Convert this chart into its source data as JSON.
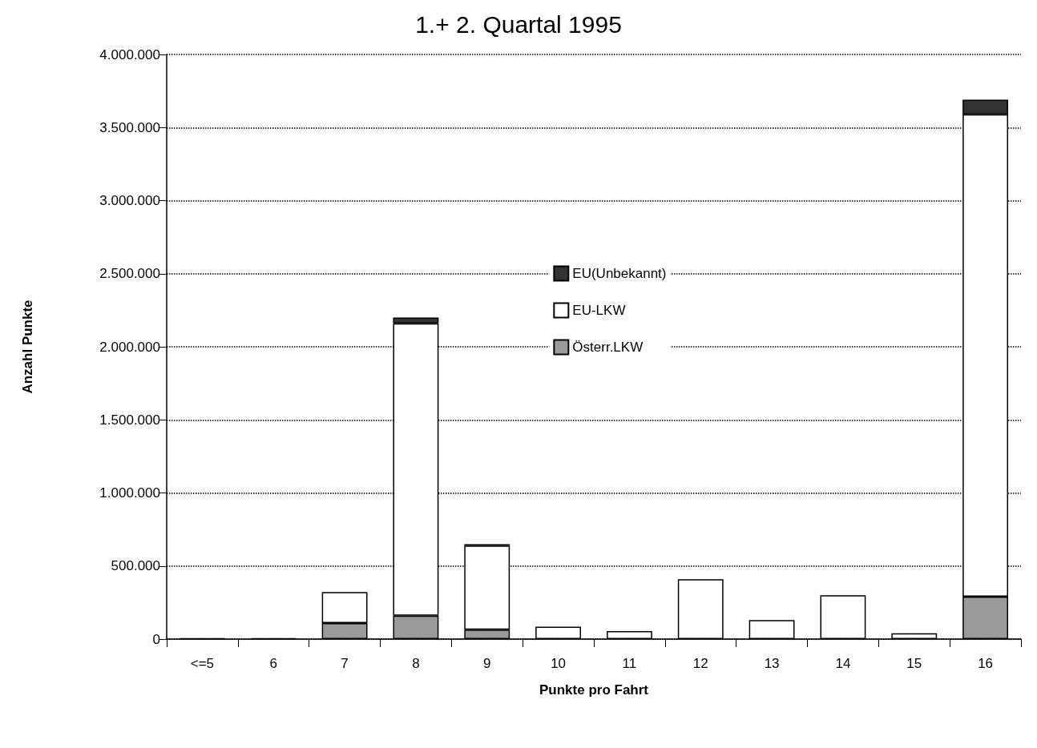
{
  "chart_data": {
    "type": "bar",
    "title": "1.+ 2. Quartal 1995",
    "xlabel": "Punkte pro Fahrt",
    "ylabel": "Anzahl Punkte",
    "categories": [
      "<=5",
      "6",
      "7",
      "8",
      "9",
      "10",
      "11",
      "12",
      "13",
      "14",
      "15",
      "16"
    ],
    "stacked": true,
    "series": [
      {
        "name": "Österr.LKW",
        "color": "#9a9a9a",
        "values": [
          0,
          0,
          110000,
          160000,
          65000,
          0,
          0,
          0,
          0,
          0,
          0,
          290000
        ]
      },
      {
        "name": "EU-LKW",
        "color": "#ffffff",
        "values": [
          5000,
          5000,
          212000,
          2000000,
          575000,
          85000,
          55000,
          410000,
          130000,
          300000,
          40000,
          3300000
        ]
      },
      {
        "name": "EU(Unbekannt)",
        "color": "#333333",
        "values": [
          0,
          0,
          0,
          40000,
          10000,
          0,
          0,
          0,
          0,
          0,
          0,
          100000
        ]
      }
    ],
    "ylim": [
      0,
      4000000
    ],
    "yticks": [
      {
        "value": 0,
        "label": "0"
      },
      {
        "value": 500000,
        "label": "500.000"
      },
      {
        "value": 1000000,
        "label": "1.000.000"
      },
      {
        "value": 1500000,
        "label": "1.500.000"
      },
      {
        "value": 2000000,
        "label": "2.000.000"
      },
      {
        "value": 2500000,
        "label": "2.500.000"
      },
      {
        "value": 3000000,
        "label": "3.000.000"
      },
      {
        "value": 3500000,
        "label": "3.500.000"
      },
      {
        "value": 4000000,
        "label": "4.000.000"
      }
    ],
    "grid": "y",
    "legend": "center"
  }
}
